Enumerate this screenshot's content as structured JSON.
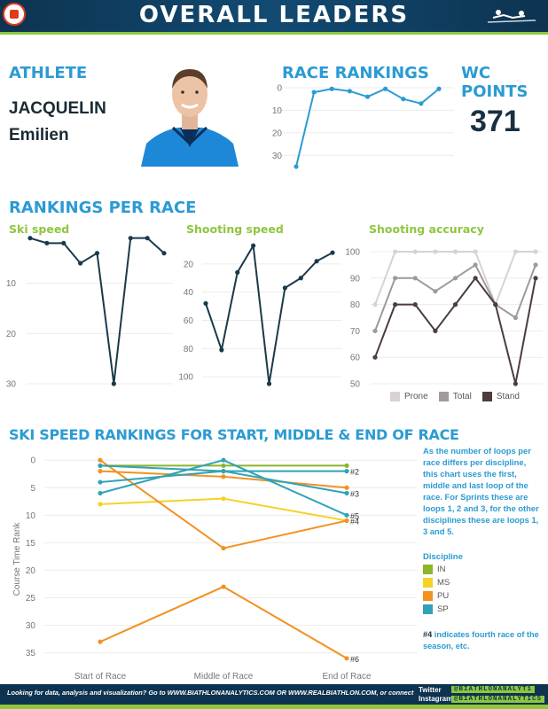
{
  "header": {
    "title": "OVERALL LEADERS"
  },
  "athlete": {
    "section_title": "ATHLETE",
    "last_name": "JACQUELIN",
    "first_name": "Emilien"
  },
  "race_rankings": {
    "section_title": "RACE RANKINGS"
  },
  "wc_points": {
    "section_title": "WC POINTS",
    "value": "371"
  },
  "rankings_per_race": {
    "section_title": "RANKINGS PER RACE"
  },
  "ski_speed": {
    "title": "Ski speed"
  },
  "shooting_speed": {
    "title": "Shooting speed"
  },
  "shooting_accuracy": {
    "title": "Shooting accuracy"
  },
  "start_middle_end": {
    "section_title": "SKI SPEED RANKINGS FOR START, MIDDLE & END OF RACE"
  },
  "note": "As the number of loops per race differs per discipline, this chart uses the first, middle and last loop of the race. For Sprints these are loops 1, 2 and 3, for the other disciplines these are loops 1, 3 and 5.",
  "discipline_legend": {
    "title": "Discipline",
    "items": [
      {
        "label": "IN",
        "color": "#8db52b"
      },
      {
        "label": "MS",
        "color": "#f5d225"
      },
      {
        "label": "PU",
        "color": "#f29221"
      },
      {
        "label": "SP",
        "color": "#2fa3b8"
      }
    ]
  },
  "note2": {
    "highlight": "#4",
    "text": " indicates fourth race of the season, etc."
  },
  "footer": {
    "text": "Looking for data, analysis and visualization? Go to WWW.BIATHLONANALYTICS.COM OR WWW.REALBIATHLON.COM, or connect",
    "twitter_label": "Twitter",
    "instagram_label": "Instagram",
    "twitter_handle": "@BIATHLONANALYT1",
    "instagram_handle": "@BIATHLONANALYTICS"
  },
  "chart_data": [
    {
      "id": "race_rankings",
      "type": "line",
      "x": [
        1,
        2,
        3,
        4,
        5,
        6,
        7,
        8,
        9
      ],
      "values": [
        35,
        2,
        0.5,
        1.5,
        4,
        0.5,
        5,
        7,
        0.5
      ],
      "ylim": [
        0,
        35
      ],
      "y_inverted": true,
      "yticks": [
        0,
        10,
        20,
        30
      ],
      "color": "#2b9bd3"
    },
    {
      "id": "ski_speed",
      "type": "line",
      "x": [
        1,
        2,
        3,
        4,
        5,
        6,
        7,
        8,
        9
      ],
      "values": [
        1,
        2,
        2,
        6,
        4,
        30,
        1,
        1,
        4
      ],
      "ylim": [
        0,
        30
      ],
      "y_inverted": true,
      "yticks": [
        10,
        20,
        30
      ],
      "color": "#1a3a4a"
    },
    {
      "id": "shooting_speed",
      "type": "line",
      "x": [
        1,
        2,
        3,
        4,
        5,
        6,
        7,
        8,
        9
      ],
      "values": [
        48,
        81,
        26,
        7,
        105,
        37,
        30,
        18,
        12
      ],
      "ylim": [
        5,
        105
      ],
      "y_inverted": true,
      "yticks": [
        20,
        40,
        60,
        80,
        100
      ],
      "color": "#1a3a4a"
    },
    {
      "id": "shooting_accuracy",
      "type": "line",
      "x": [
        1,
        2,
        3,
        4,
        5,
        6,
        7,
        8,
        9
      ],
      "ylim": [
        50,
        100
      ],
      "yticks": [
        50,
        60,
        70,
        80,
        90,
        100
      ],
      "series": [
        {
          "name": "Prone",
          "color": "#d9d2d2",
          "values": [
            80,
            100,
            100,
            100,
            100,
            100,
            80,
            100,
            100
          ]
        },
        {
          "name": "Total",
          "color": "#a09a9a",
          "values": [
            70,
            90,
            90,
            85,
            90,
            95,
            80,
            75,
            95
          ]
        },
        {
          "name": "Stand",
          "color": "#4d3d3d",
          "values": [
            60,
            80,
            80,
            70,
            80,
            90,
            80,
            50,
            90
          ]
        }
      ]
    },
    {
      "id": "start_middle_end",
      "type": "line",
      "categories": [
        "Start of Race",
        "Middle of Race",
        "End of Race"
      ],
      "ylabel": "Course Time Rank",
      "ylim": [
        -1,
        37
      ],
      "y_inverted": true,
      "yticks": [
        0,
        5,
        10,
        15,
        20,
        25,
        30,
        35
      ],
      "series": [
        {
          "discipline": "IN",
          "color": "#8db52b",
          "values": [
            1,
            1,
            1
          ],
          "label": ""
        },
        {
          "discipline": "MS",
          "color": "#f5d225",
          "values": [
            8,
            7,
            11
          ],
          "label": ""
        },
        {
          "discipline": "PU",
          "color": "#f29221",
          "values": [
            0,
            16,
            11
          ],
          "label": "#4"
        },
        {
          "discipline": "PU",
          "color": "#f29221",
          "values": [
            2,
            3,
            5
          ],
          "label": ""
        },
        {
          "discipline": "PU",
          "color": "#f29221",
          "values": [
            33,
            23,
            36
          ],
          "label": "#6"
        },
        {
          "discipline": "SP",
          "color": "#2fa3b8",
          "values": [
            1,
            2,
            2
          ],
          "label": "#2"
        },
        {
          "discipline": "SP",
          "color": "#2fa3b8",
          "values": [
            6,
            0,
            10
          ],
          "label": "#5"
        },
        {
          "discipline": "SP",
          "color": "#2fa3b8",
          "values": [
            4,
            2,
            6
          ],
          "label": "#3"
        }
      ]
    }
  ]
}
